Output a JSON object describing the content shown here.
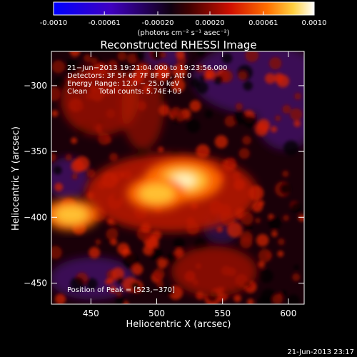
{
  "colorbar": {
    "tick_labels": [
      "-0.0010",
      "-0.00061",
      "-0.00020",
      "0.00020",
      "0.00061",
      "0.0010"
    ],
    "tick_values": [
      -0.001,
      -0.00061,
      -0.0002,
      0.0002,
      0.00061,
      0.001
    ],
    "range": [
      -0.001,
      0.001
    ],
    "unit_label": "(photons cm⁻² s⁻¹ asec⁻²)"
  },
  "chart_data": {
    "type": "heatmap",
    "title": "Reconstructed RHESSI Image",
    "xlabel": "Heliocentric X (arcsec)",
    "ylabel": "Heliocentric Y (arcsec)",
    "xlim": [
      420,
      612
    ],
    "ylim": [
      -466,
      -274
    ],
    "x_ticks": [
      450,
      500,
      550,
      600
    ],
    "y_ticks": [
      -300,
      -350,
      -400,
      -450
    ],
    "x_tick_labels": [
      "450",
      "500",
      "550",
      "600"
    ],
    "y_tick_labels": [
      "−300",
      "−350",
      "−400",
      "−450"
    ],
    "annotations": [
      "21−Jun−2013 19:21:04.000 to 19:23:56.000",
      "Detectors: 3F 5F 6F 7F 8F 9F, Att 0",
      "Energy Range: 12.0 − 25.0 keV",
      "Clean     Total counts: 5.74E+03"
    ],
    "peak_label": "Position of Peak = [523,−370]",
    "peak": [
      523,
      -370
    ],
    "sources": [
      {
        "x": 520,
        "y": -372,
        "value": 0.001
      },
      {
        "x": 500,
        "y": -382,
        "value": 0.0007
      },
      {
        "x": 435,
        "y": -398,
        "value": 0.00065
      }
    ],
    "colormap": "blue-purple-black-red-yellow-white"
  },
  "footer": {
    "timestamp": "21-Jun-2013 23:17"
  }
}
